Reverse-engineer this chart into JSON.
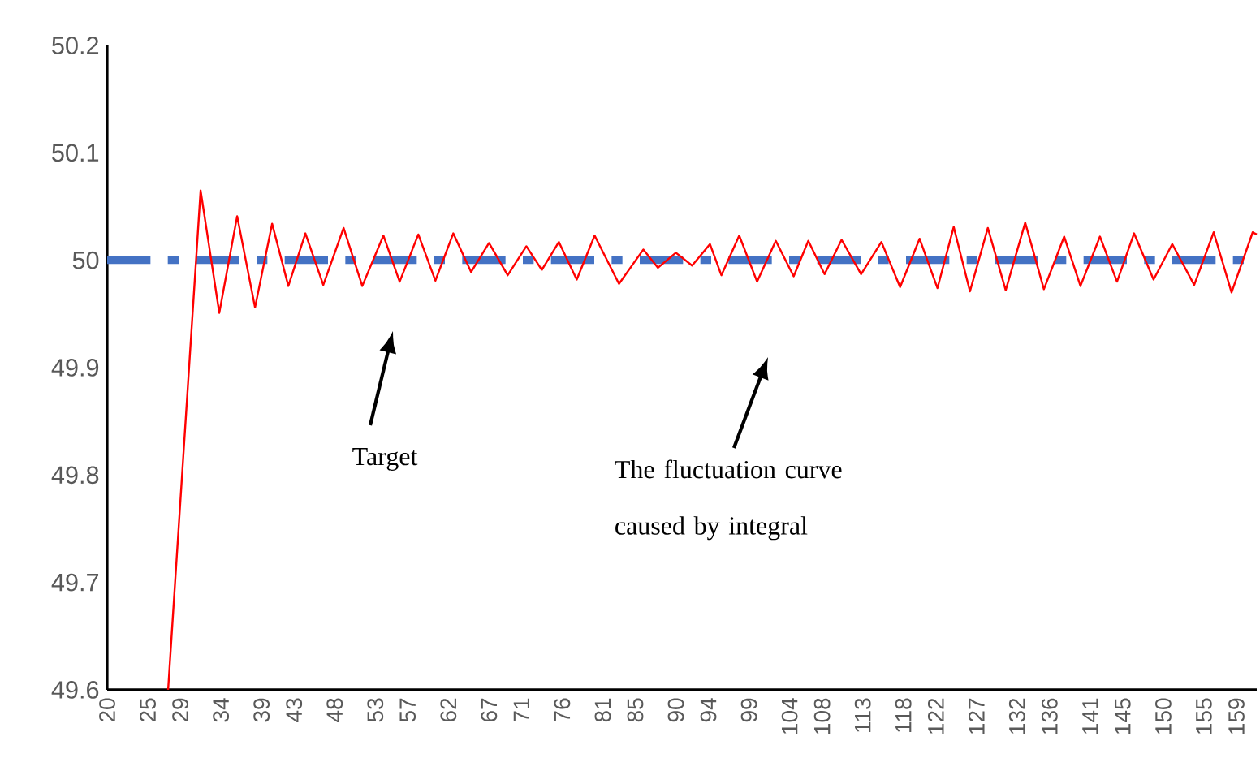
{
  "chart_data": {
    "type": "line",
    "xlim": [
      20,
      161.5
    ],
    "ylim": [
      49.6,
      50.2
    ],
    "yticks": [
      49.6,
      49.7,
      49.8,
      49.9,
      50,
      50.1,
      50.2
    ],
    "xticks": [
      20,
      25,
      29,
      34,
      39,
      43,
      48,
      53,
      57,
      62,
      67,
      71,
      76,
      81,
      85,
      90,
      94,
      99,
      104,
      108,
      113,
      118,
      122,
      127,
      132,
      136,
      141,
      145,
      150,
      155,
      159
    ],
    "series": [
      {
        "color": "#ff0000",
        "x": [
          27.5,
          31.5,
          33.8,
          36.0,
          38.2,
          40.3,
          42.3,
          44.4,
          46.6,
          49.1,
          51.4,
          54.0,
          56.0,
          58.3,
          60.4,
          62.6,
          64.8,
          67.0,
          69.3,
          71.6,
          73.5,
          75.6,
          77.8,
          80.0,
          83.0,
          86.0,
          87.8,
          90.0,
          92.0,
          94.2,
          95.6,
          97.8,
          100.0,
          102.3,
          104.5,
          106.3,
          108.3,
          110.4,
          112.8,
          115.3,
          117.6,
          120.0,
          122.2,
          124.2,
          126.2,
          128.4,
          130.6,
          133.0,
          135.3,
          137.8,
          139.8,
          142.2,
          144.3,
          146.4,
          148.8,
          151.1,
          153.8,
          156.2,
          158.4,
          161.0,
          161.5
        ],
        "values": [
          49.6,
          50.065,
          49.951,
          50.041,
          49.956,
          50.034,
          49.976,
          50.025,
          49.977,
          50.03,
          49.976,
          50.023,
          49.98,
          50.024,
          49.981,
          50.025,
          49.989,
          50.016,
          49.986,
          50.013,
          49.991,
          50.017,
          49.982,
          50.023,
          49.978,
          50.01,
          49.993,
          50.007,
          49.995,
          50.015,
          49.986,
          50.023,
          49.98,
          50.018,
          49.985,
          50.018,
          49.987,
          50.019,
          49.987,
          50.017,
          49.975,
          50.02,
          49.974,
          50.031,
          49.971,
          50.03,
          49.972,
          50.035,
          49.973,
          50.022,
          49.976,
          50.022,
          49.98,
          50.025,
          49.982,
          50.015,
          49.977,
          50.026,
          49.97,
          50.026,
          50.024
        ]
      }
    ],
    "ref_lines": [
      {
        "axis": "y",
        "value": 50,
        "color": "#4472c4",
        "line_style": "dashed"
      }
    ],
    "annotations": [
      "Target",
      "The fluctuation curve caused by integral"
    ]
  }
}
